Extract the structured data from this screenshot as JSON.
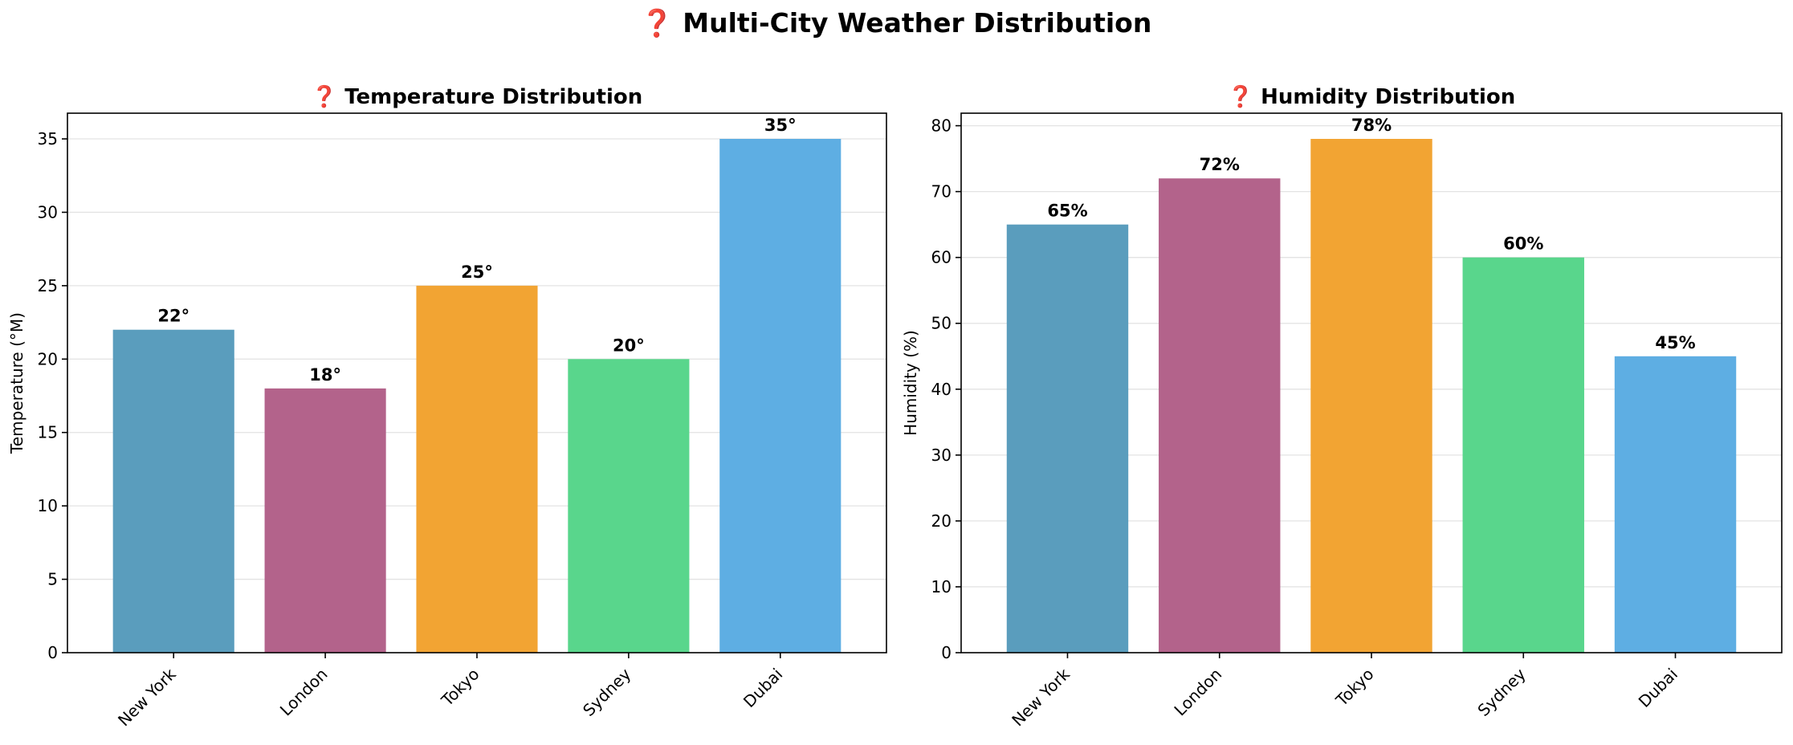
{
  "figure": {
    "title": "❓ Multi-City Weather Distribution"
  },
  "chart_data": [
    {
      "type": "bar",
      "title": "❓ Temperature Distribution",
      "xlabel": "",
      "ylabel": "Temperature (°M)",
      "categories": [
        "New York",
        "London",
        "Tokyo",
        "Sydney",
        "Dubai"
      ],
      "values": [
        22,
        18,
        25,
        20,
        35
      ],
      "value_labels": [
        "22°",
        "18°",
        "25°",
        "20°",
        "35°"
      ],
      "colors": [
        "#5a9dbd",
        "#b3638b",
        "#f2a433",
        "#59d68c",
        "#5eaee3"
      ],
      "ylim": [
        0,
        36.75
      ],
      "yticks": [
        0,
        5,
        10,
        15,
        20,
        25,
        30,
        35
      ],
      "grid": "y"
    },
    {
      "type": "bar",
      "title": "❓ Humidity Distribution",
      "xlabel": "",
      "ylabel": "Humidity (%)",
      "categories": [
        "New York",
        "London",
        "Tokyo",
        "Sydney",
        "Dubai"
      ],
      "values": [
        65,
        72,
        78,
        60,
        45
      ],
      "value_labels": [
        "65%",
        "72%",
        "78%",
        "60%",
        "45%"
      ],
      "colors": [
        "#5a9dbd",
        "#b3638b",
        "#f2a433",
        "#59d68c",
        "#5eaee3"
      ],
      "ylim": [
        0,
        81.9
      ],
      "yticks": [
        0,
        10,
        20,
        30,
        40,
        50,
        60,
        70,
        80
      ],
      "grid": "y"
    }
  ]
}
